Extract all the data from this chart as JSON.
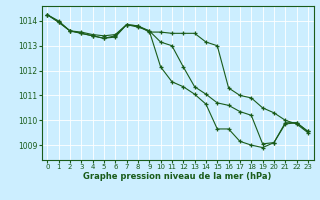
{
  "background_color": "#cceeff",
  "grid_color": "#aaddcc",
  "line_color": "#1a5c1a",
  "text_color": "#1a5c1a",
  "xlabel": "Graphe pression niveau de la mer (hPa)",
  "ylim": [
    1008.4,
    1014.6
  ],
  "xlim": [
    -0.5,
    23.5
  ],
  "yticks": [
    1009,
    1010,
    1011,
    1012,
    1013,
    1014
  ],
  "xticks": [
    0,
    1,
    2,
    3,
    4,
    5,
    6,
    7,
    8,
    9,
    10,
    11,
    12,
    13,
    14,
    15,
    16,
    17,
    18,
    19,
    20,
    21,
    22,
    23
  ],
  "series": [
    {
      "x": [
        0,
        1,
        2,
        3,
        4,
        5,
        6,
        7,
        8,
        9,
        10,
        11,
        12,
        13,
        14,
        15,
        16,
        17,
        18,
        19,
        20,
        21,
        22,
        23
      ],
      "y": [
        1014.25,
        1014.0,
        1013.6,
        1013.55,
        1013.45,
        1013.4,
        1013.45,
        1013.85,
        1013.8,
        1013.6,
        1013.15,
        1013.0,
        1012.15,
        1011.35,
        1011.05,
        1010.7,
        1010.6,
        1010.35,
        1010.2,
        1009.05,
        1009.1,
        1009.9,
        1009.9,
        1009.55
      ]
    },
    {
      "x": [
        0,
        1,
        2,
        3,
        4,
        5,
        6,
        7,
        8,
        9,
        10,
        11,
        12,
        13,
        14,
        15,
        16,
        17,
        18,
        19,
        20,
        21,
        22,
        23
      ],
      "y": [
        1014.25,
        1013.95,
        1013.6,
        1013.5,
        1013.4,
        1013.3,
        1013.4,
        1013.85,
        1013.8,
        1013.55,
        1013.55,
        1013.5,
        1013.5,
        1013.5,
        1013.15,
        1013.0,
        1011.3,
        1011.0,
        1010.9,
        1010.5,
        1010.3,
        1010.0,
        1009.85,
        1009.5
      ]
    },
    {
      "x": [
        0,
        1,
        2,
        3,
        4,
        5,
        6,
        7,
        8,
        9,
        10,
        11,
        12,
        13,
        14,
        15,
        16,
        17,
        18,
        19,
        20,
        21,
        22,
        23
      ],
      "y": [
        1014.25,
        1013.95,
        1013.6,
        1013.5,
        1013.4,
        1013.3,
        1013.35,
        1013.85,
        1013.75,
        1013.6,
        1012.15,
        1011.55,
        1011.35,
        1011.05,
        1010.65,
        1009.65,
        1009.65,
        1009.15,
        1009.0,
        1008.9,
        1009.1,
        1009.85,
        1009.9,
        1009.55
      ]
    }
  ]
}
